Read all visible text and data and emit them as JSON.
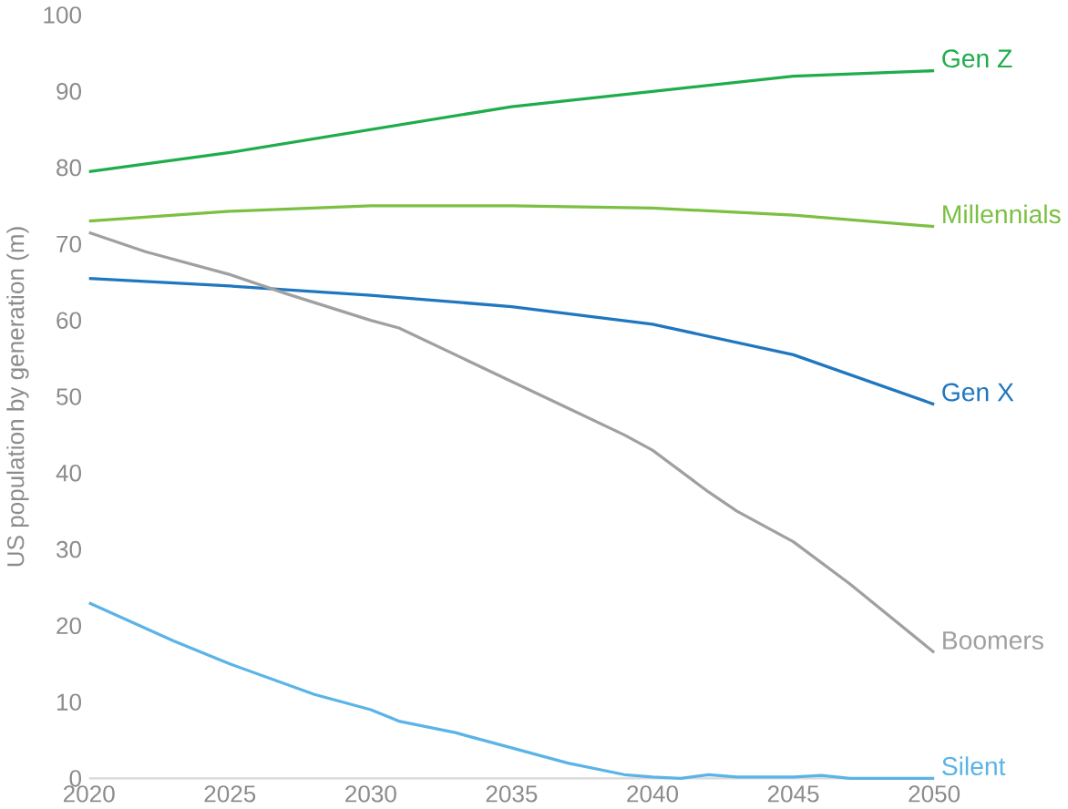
{
  "chart_data": {
    "type": "line",
    "ylabel": "US population by generation (m)",
    "xlim": [
      2020,
      2050
    ],
    "ylim": [
      0,
      100
    ],
    "xticks": [
      2020,
      2025,
      2030,
      2035,
      2040,
      2045,
      2050
    ],
    "yticks": [
      0,
      10,
      20,
      30,
      40,
      50,
      60,
      70,
      80,
      90,
      100
    ],
    "series": [
      {
        "name": "Gen Z",
        "color": "#1fad4c",
        "x": [
          2020,
          2025,
          2030,
          2035,
          2040,
          2045,
          2050
        ],
        "values": [
          79.5,
          82,
          85,
          88,
          90,
          92,
          92.7
        ]
      },
      {
        "name": "Millennials",
        "color": "#7bc043",
        "x": [
          2020,
          2025,
          2030,
          2035,
          2040,
          2045,
          2050
        ],
        "values": [
          73,
          74.3,
          75,
          75,
          74.7,
          73.8,
          72.3
        ]
      },
      {
        "name": "Gen X",
        "color": "#1f77c0",
        "x": [
          2020,
          2025,
          2030,
          2035,
          2040,
          2045,
          2050
        ],
        "values": [
          65.5,
          64.5,
          63.3,
          61.8,
          59.5,
          55.5,
          49
        ]
      },
      {
        "name": "Boomers",
        "color": "#a0a0a0",
        "x": [
          2020,
          2022,
          2025,
          2027,
          2030,
          2031,
          2033,
          2035,
          2037,
          2039,
          2040,
          2042,
          2043,
          2045,
          2047,
          2050
        ],
        "values": [
          71.5,
          69,
          66,
          63.5,
          60,
          59,
          55.5,
          52,
          48.5,
          45,
          43,
          37.5,
          35,
          31,
          25.5,
          16.5
        ]
      },
      {
        "name": "Silent",
        "color": "#5ab4e6",
        "x": [
          2020,
          2023,
          2025,
          2028,
          2030,
          2031,
          2033,
          2035,
          2037,
          2039,
          2040,
          2041,
          2042,
          2043,
          2045,
          2046,
          2047,
          2050
        ],
        "values": [
          23,
          18,
          15,
          11,
          9,
          7.5,
          6,
          4,
          2,
          0.5,
          0.2,
          0,
          0.5,
          0.2,
          0.2,
          0.4,
          0,
          0
        ]
      }
    ]
  }
}
